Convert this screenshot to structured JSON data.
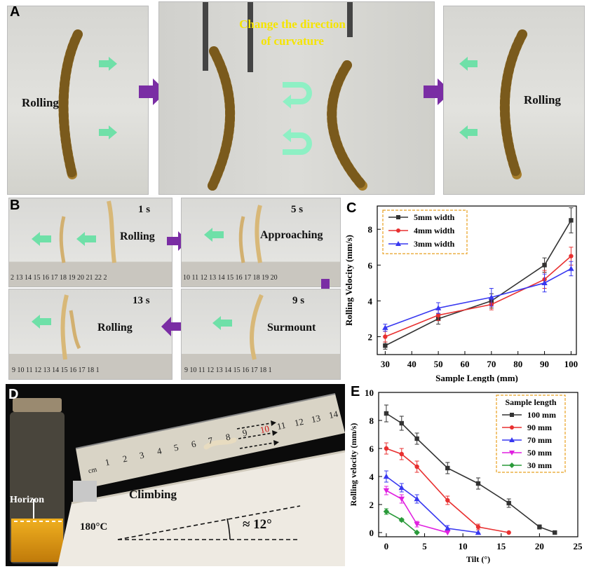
{
  "panel_a": {
    "label": "A",
    "left_text": "Rolling",
    "right_text": "Rolling",
    "caption_line1": "Change the direction",
    "caption_line2": "of curvature"
  },
  "panel_b": {
    "label": "B",
    "frames": [
      {
        "time": "1 s",
        "action": "Rolling",
        "ruler": "2 13 14 15 16 17 18 19 20 21 22 2"
      },
      {
        "time": "5 s",
        "action": "Approaching",
        "ruler": "10 11 12 13 14 15 16 17 18 19 20"
      },
      {
        "time": "13 s",
        "action": "Rolling",
        "ruler": "9 10 11 12 13 14 15 16 17 18 1"
      },
      {
        "time": "9 s",
        "action": "Surmount",
        "ruler": "9 10 11 12 13 14 15 16 17 18 1"
      }
    ]
  },
  "panel_c": {
    "label": "C"
  },
  "panel_d": {
    "label": "D",
    "horizon": "Horizon",
    "climbing": "Climbing",
    "temperature": "180°C",
    "angle": "≈ 12°",
    "ruler_unit": "cm",
    "ruler_ticks": [
      "1",
      "2",
      "3",
      "4",
      "5",
      "6",
      "7",
      "8",
      "9",
      "10",
      "11",
      "12",
      "13",
      "14"
    ]
  },
  "panel_e": {
    "label": "E"
  },
  "colors": {
    "purple_arrow": "#7a2da4",
    "green_arrow": "#6fe0a8",
    "black_series": "#333333",
    "red_series": "#e83030",
    "blue_series": "#3838f0",
    "magenta_series": "#e020e0",
    "green_series": "#2a9a3a",
    "legend_border": "#e8a020"
  },
  "chart_data": [
    {
      "type": "line",
      "title": "",
      "xlabel": "Sample Length (mm)",
      "ylabel": "Rolling Velocity (mm/s)",
      "xlim": [
        27,
        102
      ],
      "ylim": [
        1,
        9.3
      ],
      "xticks": [
        30,
        40,
        50,
        60,
        70,
        80,
        90,
        100
      ],
      "yticks": [
        2,
        4,
        6,
        8
      ],
      "legend_position": "top-left",
      "series": [
        {
          "name": "5mm width",
          "color": "#333333",
          "marker": "square",
          "x": [
            30,
            50,
            70,
            90,
            100
          ],
          "y": [
            1.5,
            3.0,
            4.0,
            6.0,
            8.5
          ],
          "err": [
            0.2,
            0.3,
            0.4,
            0.4,
            0.7
          ]
        },
        {
          "name": "4mm width",
          "color": "#e83030",
          "marker": "circle",
          "x": [
            30,
            50,
            70,
            90,
            100
          ],
          "y": [
            2.0,
            3.2,
            3.8,
            5.2,
            6.5
          ],
          "err": [
            0.3,
            0.3,
            0.3,
            0.5,
            0.5
          ]
        },
        {
          "name": "3mm width",
          "color": "#3838f0",
          "marker": "triangle",
          "x": [
            30,
            50,
            70,
            90,
            100
          ],
          "y": [
            2.5,
            3.6,
            4.2,
            5.0,
            5.8
          ],
          "err": [
            0.2,
            0.3,
            0.5,
            0.5,
            0.4
          ]
        }
      ]
    },
    {
      "type": "line",
      "title": "",
      "xlabel": "Tilt (°)",
      "ylabel": "Rolling velocity (mm/s)",
      "xlim": [
        -1,
        25
      ],
      "ylim": [
        -0.3,
        10
      ],
      "xticks": [
        0,
        5,
        10,
        15,
        20,
        25
      ],
      "yticks": [
        0,
        2,
        4,
        6,
        8,
        10
      ],
      "legend_title": "Sample length",
      "legend_position": "top-right",
      "series": [
        {
          "name": "100 mm",
          "color": "#333333",
          "marker": "square",
          "x": [
            0,
            2,
            4,
            8,
            12,
            16,
            20,
            22
          ],
          "y": [
            8.5,
            7.8,
            6.7,
            4.6,
            3.5,
            2.1,
            0.4,
            0.0
          ],
          "err": [
            0.6,
            0.5,
            0.4,
            0.4,
            0.4,
            0.3,
            0.15,
            0
          ]
        },
        {
          "name": "90 mm",
          "color": "#e83030",
          "marker": "circle",
          "x": [
            0,
            2,
            4,
            8,
            12,
            16
          ],
          "y": [
            6.0,
            5.6,
            4.7,
            2.3,
            0.4,
            0.0
          ],
          "err": [
            0.4,
            0.4,
            0.4,
            0.3,
            0.2,
            0
          ]
        },
        {
          "name": "70 mm",
          "color": "#3838f0",
          "marker": "triangle",
          "x": [
            0,
            2,
            4,
            8,
            12
          ],
          "y": [
            4.0,
            3.2,
            2.4,
            0.3,
            0.0
          ],
          "err": [
            0.4,
            0.3,
            0.3,
            0.2,
            0
          ]
        },
        {
          "name": "50 mm",
          "color": "#e020e0",
          "marker": "triangle-down",
          "x": [
            0,
            2,
            4,
            8
          ],
          "y": [
            3.0,
            2.4,
            0.6,
            0.0
          ],
          "err": [
            0.3,
            0.3,
            0.2,
            0
          ]
        },
        {
          "name": "30 mm",
          "color": "#2a9a3a",
          "marker": "diamond",
          "x": [
            0,
            2,
            4
          ],
          "y": [
            1.5,
            0.9,
            0.0
          ],
          "err": [
            0.2,
            0.1,
            0
          ]
        }
      ]
    }
  ]
}
